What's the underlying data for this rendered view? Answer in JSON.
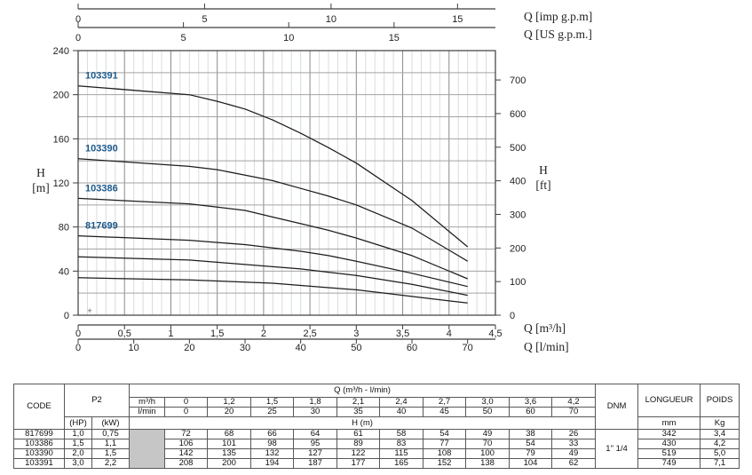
{
  "chart": {
    "top_axis_imp": {
      "label": "Q [imp g.p.m]",
      "ticks": [
        0,
        5,
        10,
        15
      ]
    },
    "top_axis_us": {
      "label": "Q [US g.p.m.]",
      "ticks": [
        0,
        5,
        10,
        15
      ]
    },
    "left_axis": {
      "label_letter": "H",
      "label_unit": "[m]",
      "ticks": [
        0,
        40,
        80,
        120,
        160,
        200,
        240
      ]
    },
    "right_axis": {
      "label_letter": "H",
      "label_unit": "[ft]",
      "ticks": [
        0,
        100,
        200,
        300,
        400,
        500,
        600,
        700
      ]
    },
    "bottom_axis_m3h": {
      "label": "Q [m³/h]",
      "tick_labels": [
        "0",
        "0,5",
        "1",
        "1,5",
        "2",
        "2,5",
        "3",
        "3,5",
        "4",
        "4,5"
      ]
    },
    "bottom_axis_lmin": {
      "label": "Q [l/min]",
      "ticks": [
        0,
        10,
        20,
        30,
        40,
        50,
        60,
        70
      ]
    },
    "plus_marker": "+"
  },
  "chart_data": {
    "type": "line",
    "x_label": "Q [m³/h]",
    "y_label": "H [m]",
    "xlim": [
      0,
      4.5
    ],
    "ylim": [
      0,
      240
    ],
    "x_minor_step": 0.1,
    "x_major_step": 0.5,
    "y_grid_step": 20,
    "grid": true,
    "x_m3h": [
      0,
      1.2,
      1.5,
      1.8,
      2.1,
      2.4,
      2.7,
      3.0,
      3.6,
      4.2
    ],
    "series": [
      {
        "name": "103391",
        "values": [
          208,
          200,
          194,
          187,
          177,
          165,
          152,
          138,
          104,
          62
        ]
      },
      {
        "name": "103390",
        "values": [
          142,
          135,
          132,
          127,
          122,
          115,
          108,
          100,
          79,
          49
        ]
      },
      {
        "name": "103386",
        "values": [
          106,
          101,
          98,
          95,
          89,
          83,
          77,
          70,
          54,
          33
        ]
      },
      {
        "name": "817699",
        "values": [
          72,
          68,
          66,
          64,
          61,
          58,
          54,
          49,
          38,
          26
        ]
      },
      {
        "name": "",
        "values": [
          53,
          50,
          48,
          46,
          44,
          42,
          39,
          36,
          28,
          18
        ]
      },
      {
        "name": "",
        "values": [
          34,
          32,
          31,
          30,
          29,
          27,
          25,
          23,
          17,
          11
        ]
      }
    ]
  },
  "table": {
    "headers": {
      "code": "CODE",
      "p2": "P2",
      "hp": "(HP)",
      "kw": "(kW)",
      "q_title": "Q (m³/h - l/min)",
      "m3h": "m³/h",
      "lmin": "l/min",
      "h_m": "H (m)",
      "dnm": "DNM",
      "longueur": "LONGUEUR",
      "mm": "mm",
      "poids": "POIDS",
      "kg": "Kg"
    },
    "q_m3h": [
      "0",
      "1,2",
      "1,5",
      "1,8",
      "2,1",
      "2,4",
      "2,7",
      "3,0",
      "3,6",
      "4,2"
    ],
    "q_lmin": [
      "0",
      "20",
      "25",
      "30",
      "35",
      "40",
      "45",
      "50",
      "60",
      "70"
    ],
    "dnm_value": "1\" 1/4",
    "rows": [
      {
        "code": "817699",
        "hp": "1,0",
        "kw": "0,75",
        "h": [
          "72",
          "68",
          "66",
          "64",
          "61",
          "58",
          "54",
          "49",
          "38",
          "26"
        ],
        "longueur": "342",
        "poids": "3,4"
      },
      {
        "code": "103386",
        "hp": "1,5",
        "kw": "1,1",
        "h": [
          "106",
          "101",
          "98",
          "95",
          "89",
          "83",
          "77",
          "70",
          "54",
          "33"
        ],
        "longueur": "430",
        "poids": "4,2"
      },
      {
        "code": "103390",
        "hp": "2,0",
        "kw": "1,5",
        "h": [
          "142",
          "135",
          "132",
          "127",
          "122",
          "115",
          "108",
          "100",
          "79",
          "49"
        ],
        "longueur": "519",
        "poids": "5,0"
      },
      {
        "code": "103391",
        "hp": "3,0",
        "kw": "2,2",
        "h": [
          "208",
          "200",
          "194",
          "187",
          "177",
          "165",
          "152",
          "138",
          "104",
          "62"
        ],
        "longueur": "749",
        "poids": "7,1"
      }
    ]
  },
  "colors": {
    "curve": "#1c1c1c",
    "curve_label": "#1d5a8c",
    "grid_minor": "#d9dcdc",
    "grid_major": "#8a8a8a",
    "grid_horizontal": "#a3a3a3",
    "axis": "#3c3c3c",
    "tick_text": "#222222",
    "gray_cell": "#c6c6c6"
  }
}
